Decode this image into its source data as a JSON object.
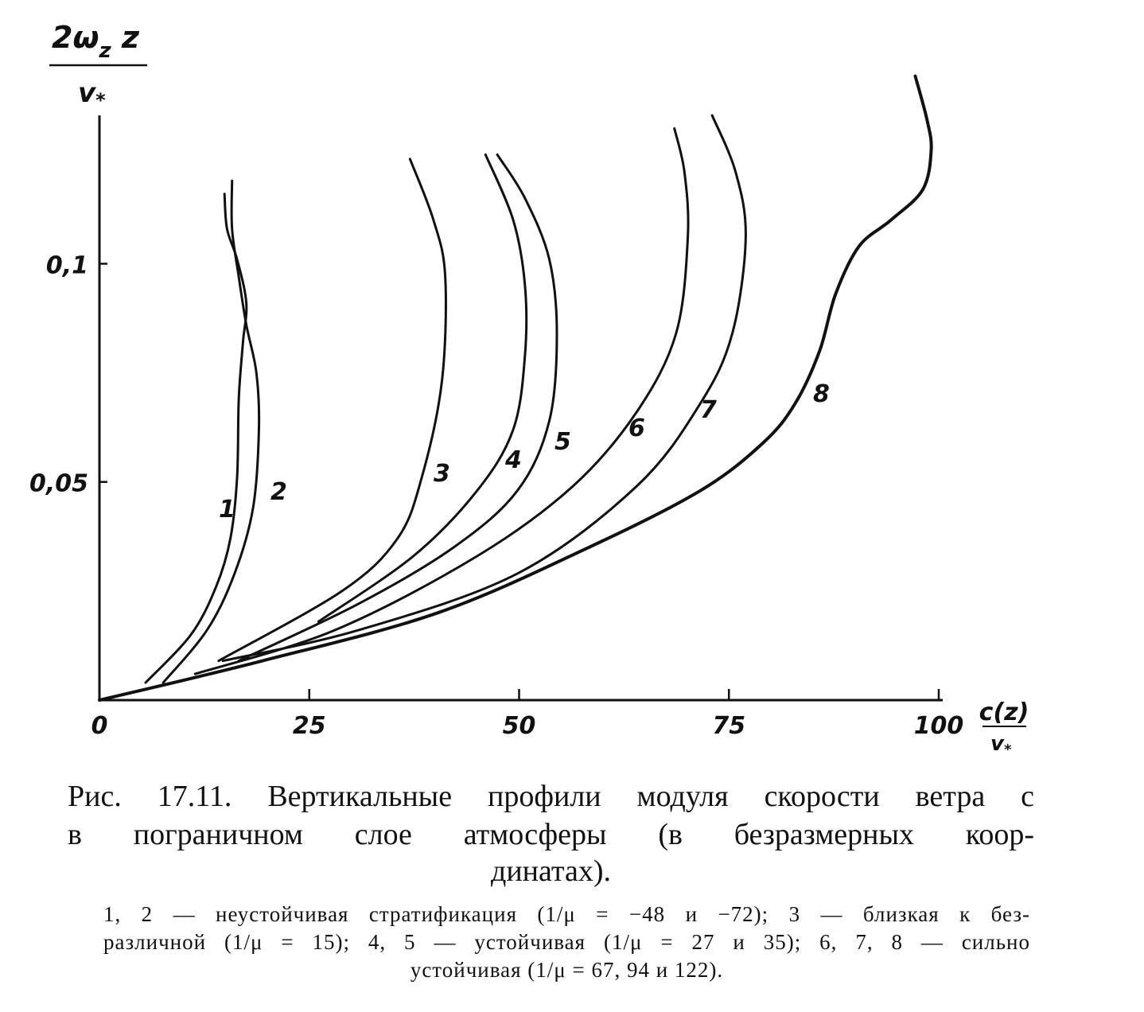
{
  "chart_data": {
    "type": "line",
    "y_label": {
      "main": "2ω",
      "sub": "z",
      "tail": " z",
      "den_main": "v",
      "den_sub": "*"
    },
    "x_label": {
      "num": "c(z)",
      "den_main": "v",
      "den_sub": "*"
    },
    "xlim": [
      0,
      100
    ],
    "ylim": [
      0,
      0.134
    ],
    "xticks": [
      0,
      25,
      50,
      75,
      100
    ],
    "yticks": [
      {
        "value": 0.05,
        "label": "0,05"
      },
      {
        "value": 0.1,
        "label": "0,1"
      }
    ],
    "series": [
      {
        "name": "1",
        "color": "#111111",
        "x": [
          5.5,
          10.9,
          13.9,
          15.6,
          16.4,
          16.6,
          17.1,
          17.5,
          16.4,
          15.2,
          14.9
        ],
        "values": [
          0.004,
          0.015,
          0.026,
          0.037,
          0.051,
          0.069,
          0.082,
          0.091,
          0.101,
          0.108,
          0.116
        ]
      },
      {
        "name": "2",
        "color": "#111111",
        "x": [
          7.6,
          12.8,
          16.1,
          18.3,
          19.0,
          18.7,
          17.5,
          16.6,
          15.8,
          15.8
        ],
        "values": [
          0.004,
          0.016,
          0.029,
          0.044,
          0.062,
          0.075,
          0.086,
          0.097,
          0.108,
          0.119
        ]
      },
      {
        "name": "3",
        "color": "#111111",
        "x": [
          14.2,
          28.9,
          35.5,
          38.4,
          40.8,
          41.2,
          39.8,
          37.0
        ],
        "values": [
          0.009,
          0.025,
          0.037,
          0.051,
          0.073,
          0.097,
          0.11,
          0.124
        ]
      },
      {
        "name": "4",
        "color": "#111111",
        "x": [
          26.1,
          37.4,
          45.0,
          49.3,
          50.7,
          50.7,
          49.3,
          46.0
        ],
        "values": [
          0.018,
          0.033,
          0.048,
          0.062,
          0.079,
          0.095,
          0.11,
          0.125
        ]
      },
      {
        "name": "5",
        "color": "#111111",
        "x": [
          16.6,
          30.8,
          42.2,
          49.8,
          53.6,
          54.5,
          53.6,
          50.7,
          47.4
        ],
        "values": [
          0.009,
          0.022,
          0.035,
          0.048,
          0.064,
          0.084,
          0.101,
          0.115,
          0.125
        ]
      },
      {
        "name": "6",
        "color": "#111111",
        "x": [
          11.4,
          28.0,
          45.0,
          56.4,
          64.0,
          68.7,
          70.1,
          69.7,
          68.5
        ],
        "values": [
          0.006,
          0.016,
          0.033,
          0.049,
          0.066,
          0.084,
          0.106,
          0.121,
          0.131
        ]
      },
      {
        "name": "7",
        "color": "#111111",
        "x": [
          14.7,
          30.8,
          49.8,
          64.0,
          71.6,
          75.4,
          77.0,
          75.8,
          73.0
        ],
        "values": [
          0.009,
          0.016,
          0.029,
          0.049,
          0.068,
          0.084,
          0.106,
          0.121,
          0.134
        ]
      },
      {
        "name": "8",
        "color": "#111111",
        "x": [
          0,
          19.4,
          40.3,
          58.3,
          71.6,
          79.1,
          82.9,
          85.8,
          87.7,
          90.5,
          94.3,
          98.1,
          99.1,
          98.6,
          97.2
        ],
        "values": [
          0,
          0.009,
          0.02,
          0.035,
          0.048,
          0.059,
          0.068,
          0.08,
          0.093,
          0.104,
          0.11,
          0.117,
          0.126,
          0.133,
          0.143
        ]
      }
    ]
  },
  "caption": {
    "title_lines": [
      "Рис. 17.11. Вертикальные профили модуля скорости ветра c",
      "в пограничном слое атмосферы (в безразмерных коор-",
      "динатах)."
    ],
    "note_lines": [
      "1, 2 — неустойчивая стратификация (1/μ = −48 и −72); 3 — близкая к без-",
      "различной (1/μ = 15); 4, 5 — устойчивая (1/μ = 27 и 35); 6, 7, 8 — сильно",
      "устойчивая (1/μ = 67, 94 и 122)."
    ]
  }
}
